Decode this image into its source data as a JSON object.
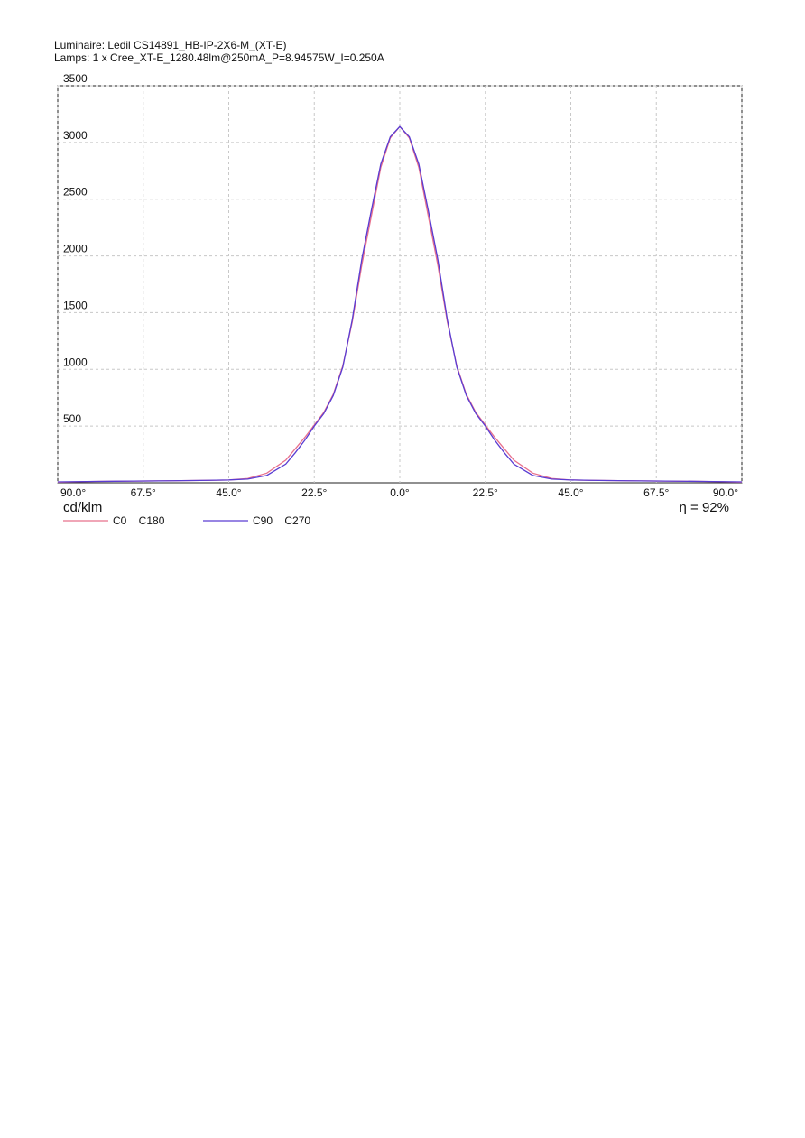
{
  "chart_data": {
    "type": "line",
    "title": "Luminaire: Ledil CS14891_HB-IP-2X6-M_(XT-E)",
    "subtitle": "Lamps: 1 x Cree_XT-E_1280.48lm@250mA_P=8.94575W_I=0.250A",
    "y_label": "cd/klm",
    "annotation": "η = 92%",
    "x": [
      -90,
      -80,
      -70,
      -60,
      -50,
      -45,
      -40,
      -35,
      -30,
      -27.5,
      -25,
      -22.5,
      -20,
      -17.5,
      -15,
      -12.5,
      -10,
      -7.5,
      -5,
      -2.5,
      0,
      2.5,
      5,
      7.5,
      10,
      12.5,
      15,
      17.5,
      20,
      22.5,
      25,
      27.5,
      30,
      35,
      40,
      45,
      50,
      60,
      70,
      80,
      90
    ],
    "series": [
      {
        "name": "C0    C180",
        "color": "#e8708c",
        "values": [
          5,
          12,
          15,
          18,
          22,
          25,
          38,
          85,
          200,
          300,
          400,
          510,
          620,
          780,
          1030,
          1420,
          1920,
          2350,
          2780,
          3040,
          3140,
          3040,
          2780,
          2350,
          1920,
          1420,
          1030,
          780,
          620,
          510,
          400,
          300,
          200,
          85,
          38,
          25,
          22,
          18,
          15,
          12,
          5
        ]
      },
      {
        "name": "C90    C270",
        "color": "#5a3cd2",
        "values": [
          8,
          12,
          15,
          18,
          22,
          25,
          33,
          65,
          165,
          265,
          375,
          500,
          610,
          770,
          1020,
          1440,
          1970,
          2400,
          2810,
          3050,
          3140,
          3050,
          2810,
          2400,
          1970,
          1440,
          1020,
          770,
          610,
          500,
          375,
          265,
          165,
          65,
          33,
          25,
          22,
          18,
          15,
          12,
          8
        ]
      }
    ],
    "xlim": [
      -90,
      90
    ],
    "xticks": [
      {
        "value": -90,
        "label": "90.0°"
      },
      {
        "value": -67.5,
        "label": "67.5°"
      },
      {
        "value": -45,
        "label": "45.0°"
      },
      {
        "value": -22.5,
        "label": "22.5°"
      },
      {
        "value": 0,
        "label": "0.0°"
      },
      {
        "value": 22.5,
        "label": "22.5°"
      },
      {
        "value": 45,
        "label": "45.0°"
      },
      {
        "value": 67.5,
        "label": "67.5°"
      },
      {
        "value": 90,
        "label": "90.0°"
      }
    ],
    "ylim": [
      0,
      3500
    ],
    "yticks": [
      500,
      1000,
      1500,
      2000,
      2500,
      3000,
      3500
    ],
    "grid": true
  }
}
